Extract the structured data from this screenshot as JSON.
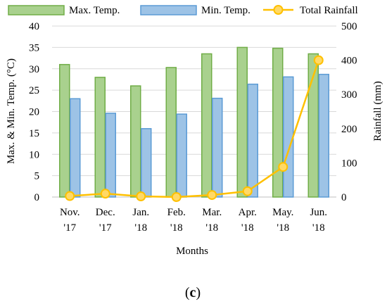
{
  "chart_data": {
    "type": "bar",
    "categories": [
      [
        "Nov.",
        "'17"
      ],
      [
        "Dec.",
        "'17"
      ],
      [
        "Jan.",
        "'18"
      ],
      [
        "Feb.",
        "'18"
      ],
      [
        "Mar.",
        "'18"
      ],
      [
        "Apr.",
        "'18"
      ],
      [
        "May.",
        "'18"
      ],
      [
        "Jun.",
        "'18"
      ]
    ],
    "series": [
      {
        "name": "Max. Temp.",
        "kind": "bar",
        "axis": "left",
        "color": "#a9d18e",
        "edge": "#70ad47",
        "values": [
          31,
          28,
          26,
          30.3,
          33.5,
          35,
          34.8,
          33.5
        ]
      },
      {
        "name": "Min. Temp.",
        "kind": "bar",
        "axis": "left",
        "color": "#9dc3e6",
        "edge": "#5b9bd5",
        "values": [
          23,
          19.6,
          16,
          19.4,
          23.1,
          26.4,
          28.1,
          28.7
        ]
      },
      {
        "name": "Total Rainfall",
        "kind": "line",
        "axis": "right",
        "color": "#ffc000",
        "marker_fill": "#ffd966",
        "values": [
          3,
          10,
          2,
          0,
          6,
          17,
          88,
          400
        ]
      }
    ],
    "xlabel": "Months",
    "ylabel": "Max. & Min. Temp. (°C)",
    "y2label": "Rainfall (mm)",
    "ylim": [
      0,
      40
    ],
    "y2lim": [
      0,
      500
    ],
    "yticks": [
      0,
      5,
      10,
      15,
      20,
      25,
      30,
      35,
      40
    ],
    "y2ticks": [
      0,
      100,
      200,
      300,
      400,
      500
    ],
    "grid": true,
    "legend": "top"
  },
  "panel_label": {
    "open": "(",
    "letter": "c",
    "close": ")"
  }
}
